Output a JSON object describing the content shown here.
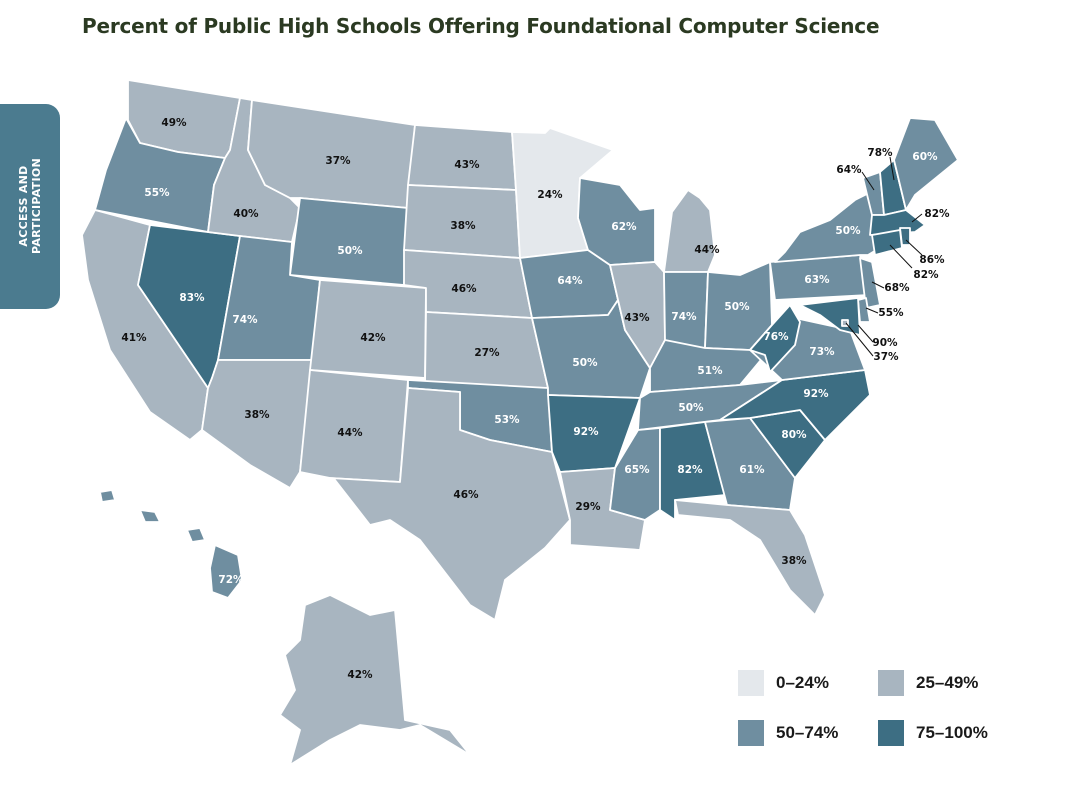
{
  "title": "Percent of Public High Schools Offering Foundational Computer Science",
  "side_tab": "ACCESS AND\nPARTICIPATION",
  "colors": {
    "bin0": "#e4e8ec",
    "bin1": "#a8b5c0",
    "bin2": "#6f8ea0",
    "bin3": "#3d6e83",
    "label_dark": "#111111",
    "label_light": "#ffffff"
  },
  "legend": [
    {
      "label": "0–24%",
      "color_key": "bin0"
    },
    {
      "label": "25–49%",
      "color_key": "bin1"
    },
    {
      "label": "50–74%",
      "color_key": "bin2"
    },
    {
      "label": "75–100%",
      "color_key": "bin3"
    }
  ],
  "states": [
    {
      "name": "Washington",
      "abbr": "WA",
      "value": 49,
      "label": "49%"
    },
    {
      "name": "Oregon",
      "abbr": "OR",
      "value": 55,
      "label": "55%"
    },
    {
      "name": "California",
      "abbr": "CA",
      "value": 41,
      "label": "41%"
    },
    {
      "name": "Nevada",
      "abbr": "NV",
      "value": 83,
      "label": "83%"
    },
    {
      "name": "Idaho",
      "abbr": "ID",
      "value": 40,
      "label": "40%"
    },
    {
      "name": "Montana",
      "abbr": "MT",
      "value": 37,
      "label": "37%"
    },
    {
      "name": "Wyoming",
      "abbr": "WY",
      "value": 50,
      "label": "50%"
    },
    {
      "name": "Utah",
      "abbr": "UT",
      "value": 74,
      "label": "74%"
    },
    {
      "name": "Arizona",
      "abbr": "AZ",
      "value": 38,
      "label": "38%"
    },
    {
      "name": "Colorado",
      "abbr": "CO",
      "value": 42,
      "label": "42%"
    },
    {
      "name": "New Mexico",
      "abbr": "NM",
      "value": 44,
      "label": "44%"
    },
    {
      "name": "North Dakota",
      "abbr": "ND",
      "value": 43,
      "label": "43%"
    },
    {
      "name": "South Dakota",
      "abbr": "SD",
      "value": 38,
      "label": "38%"
    },
    {
      "name": "Nebraska",
      "abbr": "NE",
      "value": 46,
      "label": "46%"
    },
    {
      "name": "Kansas",
      "abbr": "KS",
      "value": 27,
      "label": "27%"
    },
    {
      "name": "Oklahoma",
      "abbr": "OK",
      "value": 53,
      "label": "53%"
    },
    {
      "name": "Texas",
      "abbr": "TX",
      "value": 46,
      "label": "46%"
    },
    {
      "name": "Minnesota",
      "abbr": "MN",
      "value": 24,
      "label": "24%"
    },
    {
      "name": "Iowa",
      "abbr": "IA",
      "value": 64,
      "label": "64%"
    },
    {
      "name": "Missouri",
      "abbr": "MO",
      "value": 50,
      "label": "50%"
    },
    {
      "name": "Arkansas",
      "abbr": "AR",
      "value": 92,
      "label": "92%"
    },
    {
      "name": "Louisiana",
      "abbr": "LA",
      "value": 29,
      "label": "29%"
    },
    {
      "name": "Wisconsin",
      "abbr": "WI",
      "value": 62,
      "label": "62%"
    },
    {
      "name": "Illinois",
      "abbr": "IL",
      "value": 43,
      "label": "43%"
    },
    {
      "name": "Michigan",
      "abbr": "MI",
      "value": 44,
      "label": "44%"
    },
    {
      "name": "Indiana",
      "abbr": "IN",
      "value": 74,
      "label": "74%"
    },
    {
      "name": "Ohio",
      "abbr": "OH",
      "value": 50,
      "label": "50%"
    },
    {
      "name": "Kentucky",
      "abbr": "KY",
      "value": 51,
      "label": "51%"
    },
    {
      "name": "Tennessee",
      "abbr": "TN",
      "value": 50,
      "label": "50%"
    },
    {
      "name": "Mississippi",
      "abbr": "MS",
      "value": 65,
      "label": "65%"
    },
    {
      "name": "Alabama",
      "abbr": "AL",
      "value": 82,
      "label": "82%"
    },
    {
      "name": "Georgia",
      "abbr": "GA",
      "value": 61,
      "label": "61%"
    },
    {
      "name": "Florida",
      "abbr": "FL",
      "value": 38,
      "label": "38%"
    },
    {
      "name": "South Carolina",
      "abbr": "SC",
      "value": 80,
      "label": "80%"
    },
    {
      "name": "North Carolina",
      "abbr": "NC",
      "value": 92,
      "label": "92%"
    },
    {
      "name": "Virginia",
      "abbr": "VA",
      "value": 73,
      "label": "73%"
    },
    {
      "name": "West Virginia",
      "abbr": "WV",
      "value": 76,
      "label": "76%"
    },
    {
      "name": "Pennsylvania",
      "abbr": "PA",
      "value": 63,
      "label": "63%"
    },
    {
      "name": "New York",
      "abbr": "NY",
      "value": 50,
      "label": "50%"
    },
    {
      "name": "Vermont",
      "abbr": "VT",
      "value": 64,
      "label": "64%"
    },
    {
      "name": "New Hampshire",
      "abbr": "NH",
      "value": 78,
      "label": "78%"
    },
    {
      "name": "Maine",
      "abbr": "ME",
      "value": 60,
      "label": "60%"
    },
    {
      "name": "Massachusetts",
      "abbr": "MA",
      "value": 82,
      "label": "82%"
    },
    {
      "name": "Rhode Island",
      "abbr": "RI",
      "value": 86,
      "label": "86%"
    },
    {
      "name": "Connecticut",
      "abbr": "CT",
      "value": 82,
      "label": "82%"
    },
    {
      "name": "New Jersey",
      "abbr": "NJ",
      "value": 68,
      "label": "68%"
    },
    {
      "name": "Delaware",
      "abbr": "DE",
      "value": 55,
      "label": "55%"
    },
    {
      "name": "Maryland",
      "abbr": "MD",
      "value": 90,
      "label": "90%"
    },
    {
      "name": "District of Columbia",
      "abbr": "DC",
      "value": 37,
      "label": "37%"
    },
    {
      "name": "Alaska",
      "abbr": "AK",
      "value": 42,
      "label": "42%"
    },
    {
      "name": "Hawaii",
      "abbr": "HI",
      "value": 72,
      "label": "72%"
    }
  ]
}
